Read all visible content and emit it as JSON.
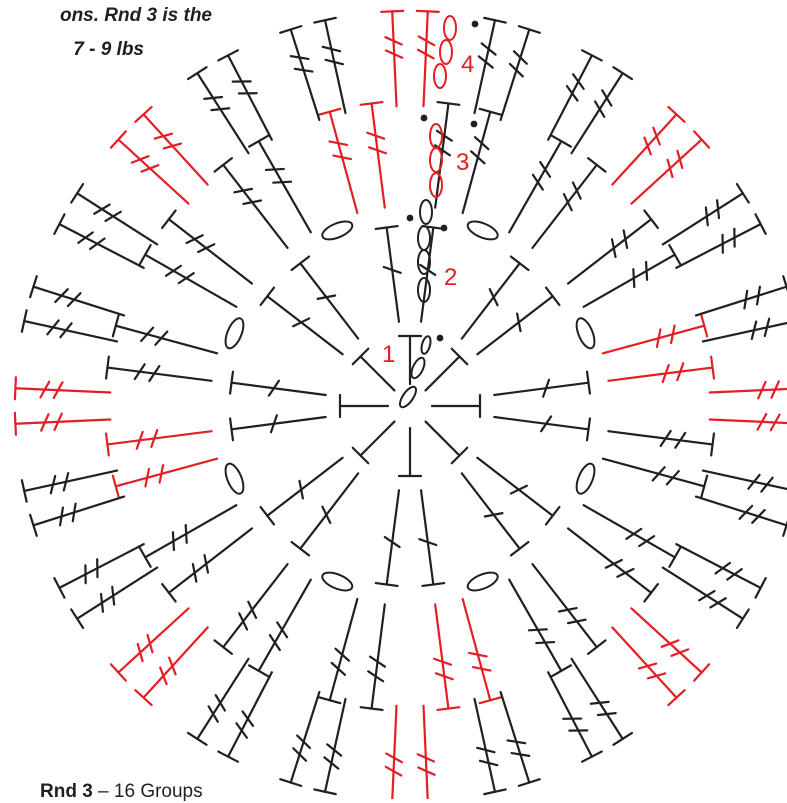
{
  "caption_lines": [
    "ons. Rnd 3 is the",
    "7 - 9 lbs"
  ],
  "round_numbers": [
    "1",
    "2",
    "3",
    "4"
  ],
  "round_label": {
    "name": "Rnd 3",
    "text": "16 Groups"
  },
  "colors": {
    "black": "#231f20",
    "red": "#e31e24"
  },
  "stitch_symbols": [
    "double-crochet",
    "half-double-crochet",
    "chain",
    "slip-stitch-dot"
  ]
}
